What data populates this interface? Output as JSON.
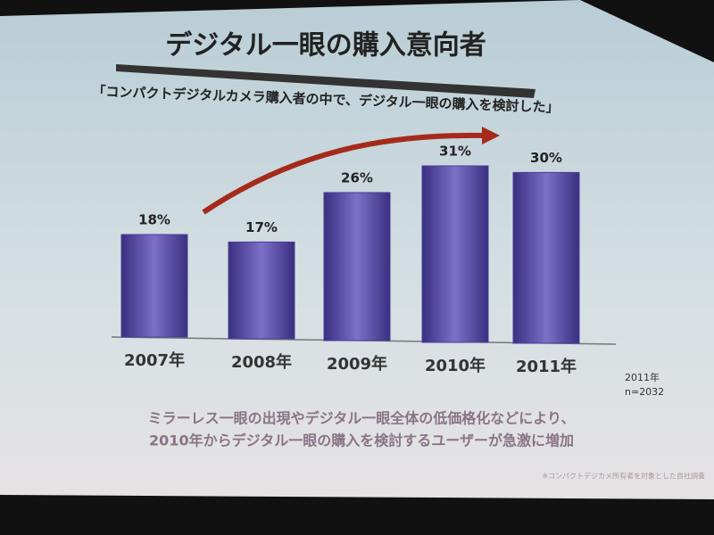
{
  "chart_data": {
    "type": "bar",
    "title": "デジタル一眼の購入意向者",
    "subtitle": "「コンパクトデジタルカメラ購入者の中で、デジタル一眼の購入を検討した」",
    "categories": [
      "2007年",
      "2008年",
      "2009年",
      "2010年",
      "2011年"
    ],
    "values": [
      18,
      17,
      26,
      31,
      30
    ],
    "value_labels": [
      "18%",
      "17%",
      "26%",
      "31%",
      "30%"
    ],
    "color": "#4a3f9a",
    "annotations": [
      "2011年",
      "n=2032"
    ],
    "caption": [
      "ミラーレス一眼の出現やデジタル一眼全体の低価格化などにより、",
      "2010年からデジタル一眼の購入を検討するユーザーが急激に増加"
    ],
    "footnote": "※コンパクトデジカメ所有者を対象とした自社調査"
  }
}
